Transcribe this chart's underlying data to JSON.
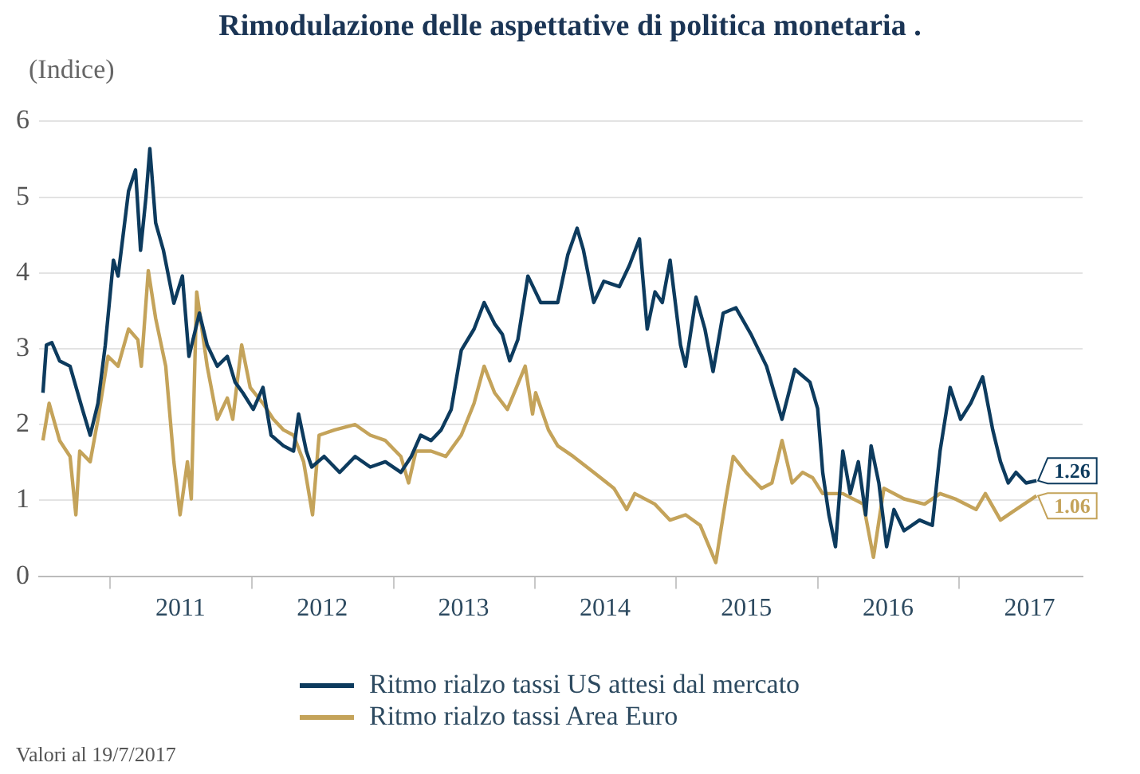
{
  "chart_data": {
    "type": "line",
    "title": "Rimodulazione delle aspettative di politica monetaria .",
    "subtitle": "(Indice)",
    "xlim": [
      "2010-07-01",
      "2017-11-15"
    ],
    "xticks": [
      {
        "value": "2011-01-01",
        "label": null
      },
      {
        "value": "2011-07-01",
        "label": "2011"
      },
      {
        "value": "2012-01-01",
        "label": null
      },
      {
        "value": "2012-07-01",
        "label": "2012"
      },
      {
        "value": "2013-01-01",
        "label": null
      },
      {
        "value": "2013-07-01",
        "label": "2013"
      },
      {
        "value": "2014-01-01",
        "label": null
      },
      {
        "value": "2014-07-01",
        "label": "2014"
      },
      {
        "value": "2015-01-01",
        "label": null
      },
      {
        "value": "2015-07-01",
        "label": "2015"
      },
      {
        "value": "2016-01-01",
        "label": null
      },
      {
        "value": "2016-07-01",
        "label": "2016"
      },
      {
        "value": "2017-01-01",
        "label": null
      },
      {
        "value": "2017-07-01",
        "label": "2017"
      }
    ],
    "ylim": [
      0,
      6
    ],
    "yticks": [
      0,
      1,
      2,
      3,
      4,
      5,
      6
    ],
    "grid": "y",
    "legend": "bottom",
    "marker": "none",
    "line_style": "solid",
    "series": [
      {
        "name": "Ritmo rialzo tassi US attesi dal mercato",
        "color": "#0d3b5e",
        "x": [
          "2010-07-11",
          "2010-07-20",
          "2010-08-03",
          "2010-08-23",
          "2010-09-19",
          "2010-10-21",
          "2010-11-10",
          "2010-11-30",
          "2010-12-19",
          "2011-01-09",
          "2011-01-21",
          "2011-02-17",
          "2011-03-07",
          "2011-03-20",
          "2011-04-03",
          "2011-04-13",
          "2011-04-28",
          "2011-05-18",
          "2011-06-14",
          "2011-07-06",
          "2011-07-23",
          "2011-08-19",
          "2011-09-08",
          "2011-10-04",
          "2011-10-30",
          "2011-11-19",
          "2011-12-09",
          "2012-01-05",
          "2012-01-30",
          "2012-02-20",
          "2012-03-23",
          "2012-04-18",
          "2012-05-01",
          "2012-05-21",
          "2012-06-04",
          "2012-07-06",
          "2012-08-15",
          "2012-09-24",
          "2012-11-02",
          "2012-12-11",
          "2013-01-20",
          "2013-02-16",
          "2013-03-12",
          "2013-04-08",
          "2013-05-04",
          "2013-05-30",
          "2013-06-25",
          "2013-07-28",
          "2013-08-23",
          "2013-09-19",
          "2013-10-09",
          "2013-10-28",
          "2013-11-18",
          "2013-12-14",
          "2014-01-16",
          "2014-03-01",
          "2014-03-27",
          "2014-04-20",
          "2014-05-06",
          "2014-06-02",
          "2014-06-28",
          "2014-08-07",
          "2014-09-02",
          "2014-09-28",
          "2014-10-18",
          "2014-11-07",
          "2014-11-26",
          "2014-12-16",
          "2015-01-12",
          "2015-01-25",
          "2015-02-21",
          "2015-03-16",
          "2015-04-06",
          "2015-05-02",
          "2015-06-04",
          "2015-07-13",
          "2015-08-22",
          "2015-10-01",
          "2015-11-03",
          "2015-12-12",
          "2016-01-01",
          "2016-01-14",
          "2016-01-30",
          "2016-02-16",
          "2016-03-06",
          "2016-03-25",
          "2016-04-15",
          "2016-05-04",
          "2016-05-18",
          "2016-06-07",
          "2016-06-27",
          "2016-07-16",
          "2016-08-11",
          "2016-09-20",
          "2016-10-23",
          "2016-11-12",
          "2016-12-08",
          "2017-01-04",
          "2017-01-30",
          "2017-03-02",
          "2017-03-28",
          "2017-04-17",
          "2017-05-07",
          "2017-05-27",
          "2017-06-22",
          "2017-07-19"
        ],
        "values": [
          2.42,
          3.05,
          3.08,
          2.84,
          2.77,
          2.2,
          1.86,
          2.28,
          3.05,
          4.17,
          3.96,
          5.08,
          5.36,
          4.3,
          5.0,
          5.64,
          4.66,
          4.3,
          3.6,
          3.96,
          2.9,
          3.47,
          3.05,
          2.77,
          2.9,
          2.56,
          2.42,
          2.2,
          2.49,
          1.86,
          1.72,
          1.65,
          2.14,
          1.65,
          1.44,
          1.58,
          1.37,
          1.58,
          1.44,
          1.51,
          1.37,
          1.58,
          1.86,
          1.79,
          1.93,
          2.2,
          2.98,
          3.26,
          3.61,
          3.33,
          3.19,
          2.84,
          3.12,
          3.96,
          3.61,
          3.61,
          4.24,
          4.59,
          4.31,
          3.61,
          3.89,
          3.82,
          4.1,
          4.45,
          3.26,
          3.75,
          3.61,
          4.17,
          3.05,
          2.77,
          3.68,
          3.26,
          2.7,
          3.47,
          3.54,
          3.19,
          2.77,
          2.07,
          2.73,
          2.56,
          2.21,
          1.37,
          0.81,
          0.39,
          1.65,
          1.09,
          1.51,
          0.81,
          1.72,
          1.23,
          0.39,
          0.88,
          0.6,
          0.74,
          0.67,
          1.65,
          2.49,
          2.07,
          2.28,
          2.63,
          1.93,
          1.51,
          1.23,
          1.37,
          1.23,
          1.26
        ]
      },
      {
        "name": "Ritmo rialzo tassi Area Euro",
        "color": "#c4a35a",
        "x": [
          "2010-07-11",
          "2010-07-27",
          "2010-08-23",
          "2010-09-19",
          "2010-10-04",
          "2010-10-14",
          "2010-11-10",
          "2010-11-30",
          "2010-12-26",
          "2011-01-21",
          "2011-02-17",
          "2011-03-13",
          "2011-03-22",
          "2011-04-09",
          "2011-04-28",
          "2011-05-24",
          "2011-06-14",
          "2011-06-30",
          "2011-07-19",
          "2011-07-29",
          "2011-08-12",
          "2011-09-08",
          "2011-10-04",
          "2011-10-30",
          "2011-11-13",
          "2011-12-06",
          "2011-12-28",
          "2012-01-30",
          "2012-02-26",
          "2012-03-23",
          "2012-04-18",
          "2012-05-14",
          "2012-06-06",
          "2012-06-23",
          "2012-08-02",
          "2012-09-24",
          "2012-11-02",
          "2012-12-11",
          "2013-01-20",
          "2013-02-09",
          "2013-02-28",
          "2013-04-08",
          "2013-05-16",
          "2013-06-25",
          "2013-07-28",
          "2013-08-23",
          "2013-09-19",
          "2013-10-22",
          "2013-12-07",
          "2013-12-26",
          "2014-01-03",
          "2014-02-05",
          "2014-03-01",
          "2014-04-10",
          "2014-06-02",
          "2014-07-24",
          "2014-08-26",
          "2014-09-16",
          "2014-11-07",
          "2014-12-16",
          "2015-01-25",
          "2015-03-04",
          "2015-04-13",
          "2015-05-09",
          "2015-05-28",
          "2015-06-30",
          "2015-08-09",
          "2015-09-05",
          "2015-10-01",
          "2015-10-27",
          "2015-11-23",
          "2015-12-19",
          "2016-01-14",
          "2016-03-06",
          "2016-04-28",
          "2016-05-24",
          "2016-06-20",
          "2016-08-11",
          "2016-10-03",
          "2016-11-12",
          "2016-12-21",
          "2017-02-13",
          "2017-03-09",
          "2017-04-17",
          "2017-05-27",
          "2017-07-19"
        ],
        "values": [
          1.79,
          2.28,
          1.79,
          1.58,
          0.81,
          1.65,
          1.51,
          2.07,
          2.9,
          2.77,
          3.26,
          3.12,
          2.77,
          4.03,
          3.4,
          2.77,
          1.51,
          0.81,
          1.51,
          1.02,
          3.75,
          2.77,
          2.07,
          2.35,
          2.07,
          3.05,
          2.49,
          2.28,
          2.07,
          1.93,
          1.86,
          1.51,
          0.81,
          1.86,
          1.93,
          2.0,
          1.86,
          1.79,
          1.58,
          1.23,
          1.65,
          1.65,
          1.58,
          1.86,
          2.28,
          2.77,
          2.42,
          2.2,
          2.77,
          2.14,
          2.42,
          1.93,
          1.72,
          1.58,
          1.37,
          1.16,
          0.88,
          1.09,
          0.95,
          0.74,
          0.81,
          0.67,
          0.18,
          1.02,
          1.58,
          1.37,
          1.16,
          1.23,
          1.79,
          1.23,
          1.37,
          1.3,
          1.09,
          1.09,
          0.95,
          0.25,
          1.16,
          1.02,
          0.95,
          1.09,
          1.02,
          0.88,
          1.09,
          0.74,
          0.88,
          1.06
        ]
      }
    ],
    "annotations": [
      {
        "text": "1.26",
        "x": "2017-07-19",
        "y": 1.26
      },
      {
        "text": "1.06",
        "x": "2017-07-19",
        "y": 1.06
      },
      "Valori al 19/7/2017"
    ]
  }
}
